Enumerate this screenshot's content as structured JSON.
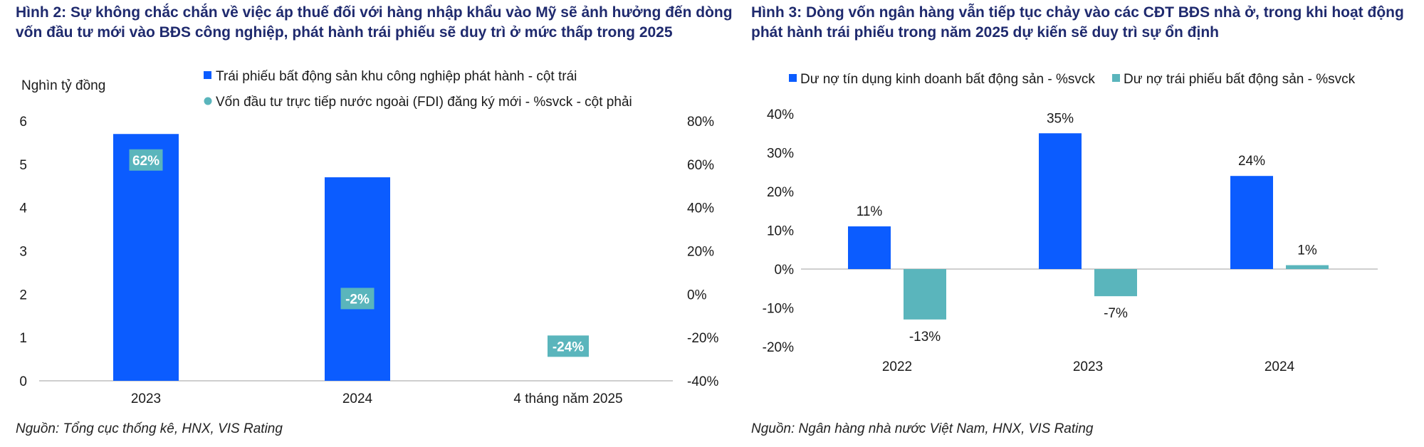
{
  "figures": [
    {
      "title": "Hình 2: Sự không chắc chắn về việc áp thuế đối với hàng nhập khẩu vào Mỹ sẽ ảnh hưởng đến dòng vốn đầu tư mới vào BĐS công nghiệp, phát hành trái phiếu sẽ duy trì ở mức thấp trong 2025",
      "source": "Nguồn: Tổng cục thống kê, HNX, VIS Rating"
    },
    {
      "title": "Hình 3:  Dòng vốn ngân hàng vẫn tiếp tục chảy vào các CĐT BĐS nhà ở, trong khi hoạt động phát hành trái phiếu trong năm 2025 dự kiến sẽ duy trì sự ổn định",
      "source": "Nguồn: Ngân hàng nhà nước Việt Nam, HNX, VIS Rating"
    }
  ],
  "colors": {
    "blue": "#0b5cff",
    "teal": "#5ab5bc",
    "title": "#1f2a6e",
    "axis": "#bfbfbf"
  },
  "chart_data": [
    {
      "type": "bar",
      "categories": [
        "2023",
        "2024",
        "4 tháng năm 2025"
      ],
      "y_axis_title": "Nghìn tỷ đồng",
      "ylim": [
        0,
        6
      ],
      "yticks": [
        "0",
        "1",
        "2",
        "3",
        "4",
        "5",
        "6"
      ],
      "y2lim": [
        -40,
        80
      ],
      "y2ticks": [
        "-40%",
        "-20%",
        "0%",
        "20%",
        "40%",
        "60%",
        "80%"
      ],
      "legend_position": "top",
      "grid": false,
      "series": [
        {
          "name": "Trái phiếu bất động sản khu công nghiệp phát hành - cột trái",
          "marker": "square",
          "color": "#0b5cff",
          "axis": "left",
          "values": [
            5.7,
            4.7,
            0
          ]
        },
        {
          "name": "Vốn đầu tư trực tiếp nước ngoài (FDI) đăng ký mới  - %svck - cột phải",
          "marker": "circle",
          "color": "#5ab5bc",
          "axis": "right",
          "values": [
            62,
            -2,
            -24
          ],
          "labels": [
            "62%",
            "-2%",
            "-24%"
          ]
        }
      ]
    },
    {
      "type": "bar",
      "categories": [
        "2022",
        "2023",
        "2024"
      ],
      "ylim": [
        -20,
        40
      ],
      "yticks": [
        "40%",
        "30%",
        "20%",
        "10%",
        "0%",
        "-10%",
        "-20%"
      ],
      "legend_position": "top",
      "grid": false,
      "series": [
        {
          "name": "Dư nợ tín dụng kinh doanh bất động sản - %svck",
          "color": "#0b5cff",
          "values": [
            11,
            35,
            24
          ],
          "labels": [
            "11%",
            "35%",
            "24%"
          ]
        },
        {
          "name": "Dư nợ trái phiếu bất động sản - %svck",
          "color": "#5ab5bc",
          "values": [
            -13,
            -7,
            1
          ],
          "labels": [
            "-13%",
            "-7%",
            "1%"
          ]
        }
      ]
    }
  ]
}
